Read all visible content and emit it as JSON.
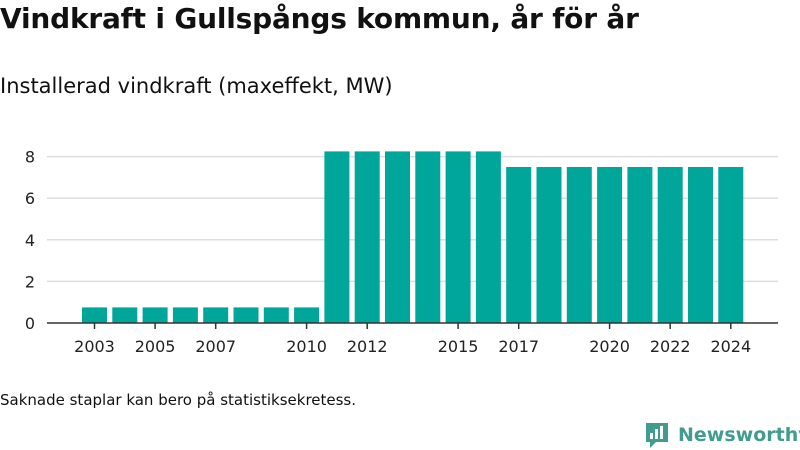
{
  "header": {
    "title": "Vindkraft i Gullspångs kommun, år för år",
    "subtitle": "Installerad vindkraft (maxeffekt, MW)"
  },
  "footer": {
    "note": "Saknade staplar kan bero på statistiksekretess.",
    "brand_name": "Newsworthy",
    "brand_icon": "chart-logo-icon"
  },
  "colors": {
    "bar": "#00a699",
    "grid": "#dddddd",
    "axis": "#333333",
    "brand": "#3f9c8f"
  },
  "chart_data": {
    "type": "bar",
    "title": "Vindkraft i Gullspångs kommun, år för år",
    "subtitle": "Installerad vindkraft (maxeffekt, MW)",
    "categories": [
      "2003",
      "2004",
      "2005",
      "2006",
      "2007",
      "2008",
      "2009",
      "2010",
      "2011",
      "2012",
      "2013",
      "2014",
      "2015",
      "2016",
      "2017",
      "2018",
      "2019",
      "2020",
      "2021",
      "2022",
      "2023",
      "2024"
    ],
    "values": [
      0.75,
      0.75,
      0.75,
      0.75,
      0.75,
      0.75,
      0.75,
      0.75,
      8.25,
      8.25,
      8.25,
      8.25,
      8.25,
      8.25,
      7.5,
      7.5,
      7.5,
      7.5,
      7.5,
      7.5,
      7.5,
      7.5
    ],
    "x_tick_labels": [
      "2003",
      "2005",
      "2007",
      "2010",
      "2012",
      "2015",
      "2017",
      "2020",
      "2022",
      "2024"
    ],
    "y_ticks": [
      0,
      2,
      4,
      6,
      8
    ],
    "ylim": [
      0,
      8.8
    ],
    "grid": true,
    "legend": "none",
    "xlabel": "",
    "ylabel": ""
  }
}
